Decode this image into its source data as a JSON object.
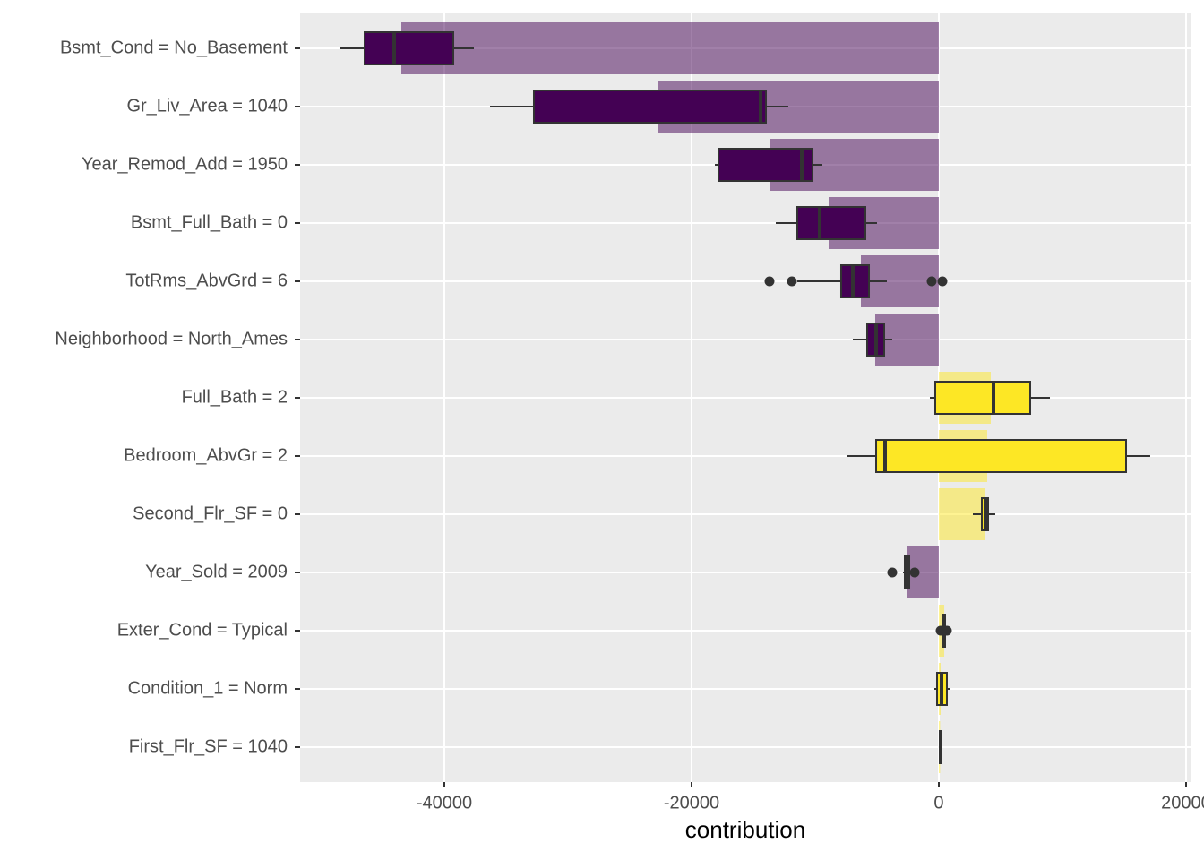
{
  "chart_data": {
    "type": "bar",
    "orientation": "horizontal",
    "xlabel": "contribution",
    "categories": [
      "Bsmt_Cond = No_Basement",
      "Gr_Liv_Area = 1040",
      "Year_Remod_Add = 1950",
      "Bsmt_Full_Bath = 0",
      "TotRms_AbvGrd = 6",
      "Neighborhood = North_Ames",
      "Full_Bath = 2",
      "Bedroom_AbvGr = 2",
      "Second_Flr_SF = 0",
      "Year_Sold = 2009",
      "Exter_Cond = Typical",
      "Condition_1 = Norm",
      "First_Flr_SF = 1040"
    ],
    "values": [
      -43478,
      -22681,
      -13623,
      -8913,
      -6304,
      -5145,
      4203,
      3913,
      3768,
      -2536,
      435,
      145,
      100
    ],
    "boxes": [
      {
        "low": -48478,
        "q1": -46449,
        "median": -44058,
        "q3": -39275,
        "high": -37609,
        "outliers": []
      },
      {
        "low": -36304,
        "q1": -32754,
        "median": -14420,
        "q3": -13986,
        "high": -12174,
        "outliers": []
      },
      {
        "low": -18116,
        "q1": -17826,
        "median": -11087,
        "q3": -10217,
        "high": -9420,
        "outliers": []
      },
      {
        "low": -13188,
        "q1": -11449,
        "median": -9638,
        "q3": -5942,
        "high": -5000,
        "outliers": []
      },
      {
        "low": -11449,
        "q1": -7899,
        "median": -6957,
        "q3": -5652,
        "high": -4203,
        "outliers": [
          -13696,
          -11884,
          -580,
          290
        ]
      },
      {
        "low": -6957,
        "q1": -5797,
        "median": -5072,
        "q3": -4420,
        "high": -3768,
        "outliers": []
      },
      {
        "low": -725,
        "q1": -290,
        "median": 4420,
        "q3": 7391,
        "high": 8986,
        "outliers": []
      },
      {
        "low": -7464,
        "q1": -5072,
        "median": -4348,
        "q3": 15145,
        "high": 17101,
        "outliers": []
      },
      {
        "low": 2754,
        "q1": 3478,
        "median": 3768,
        "q3": 3986,
        "high": 4565,
        "outliers": []
      },
      {
        "low": -2899,
        "q1": -2754,
        "median": -2536,
        "q3": -2391,
        "high": -2029,
        "outliers": [
          -3768,
          -1957
        ]
      },
      {
        "low": 217,
        "q1": 290,
        "median": 362,
        "q3": 507,
        "high": 580,
        "outliers": [
          145,
          652
        ]
      },
      {
        "low": -362,
        "q1": -145,
        "median": 217,
        "q3": 652,
        "high": 870,
        "outliers": []
      },
      {
        "low": 72,
        "q1": 72,
        "median": 145,
        "q3": 217,
        "high": 290,
        "outliers": []
      }
    ],
    "negative_color": "#440154",
    "positive_color": "#FDE725",
    "xlim": [
      -51667,
      20435
    ],
    "xticks": [
      -40000,
      -20000,
      0,
      20000
    ],
    "grid": true
  }
}
